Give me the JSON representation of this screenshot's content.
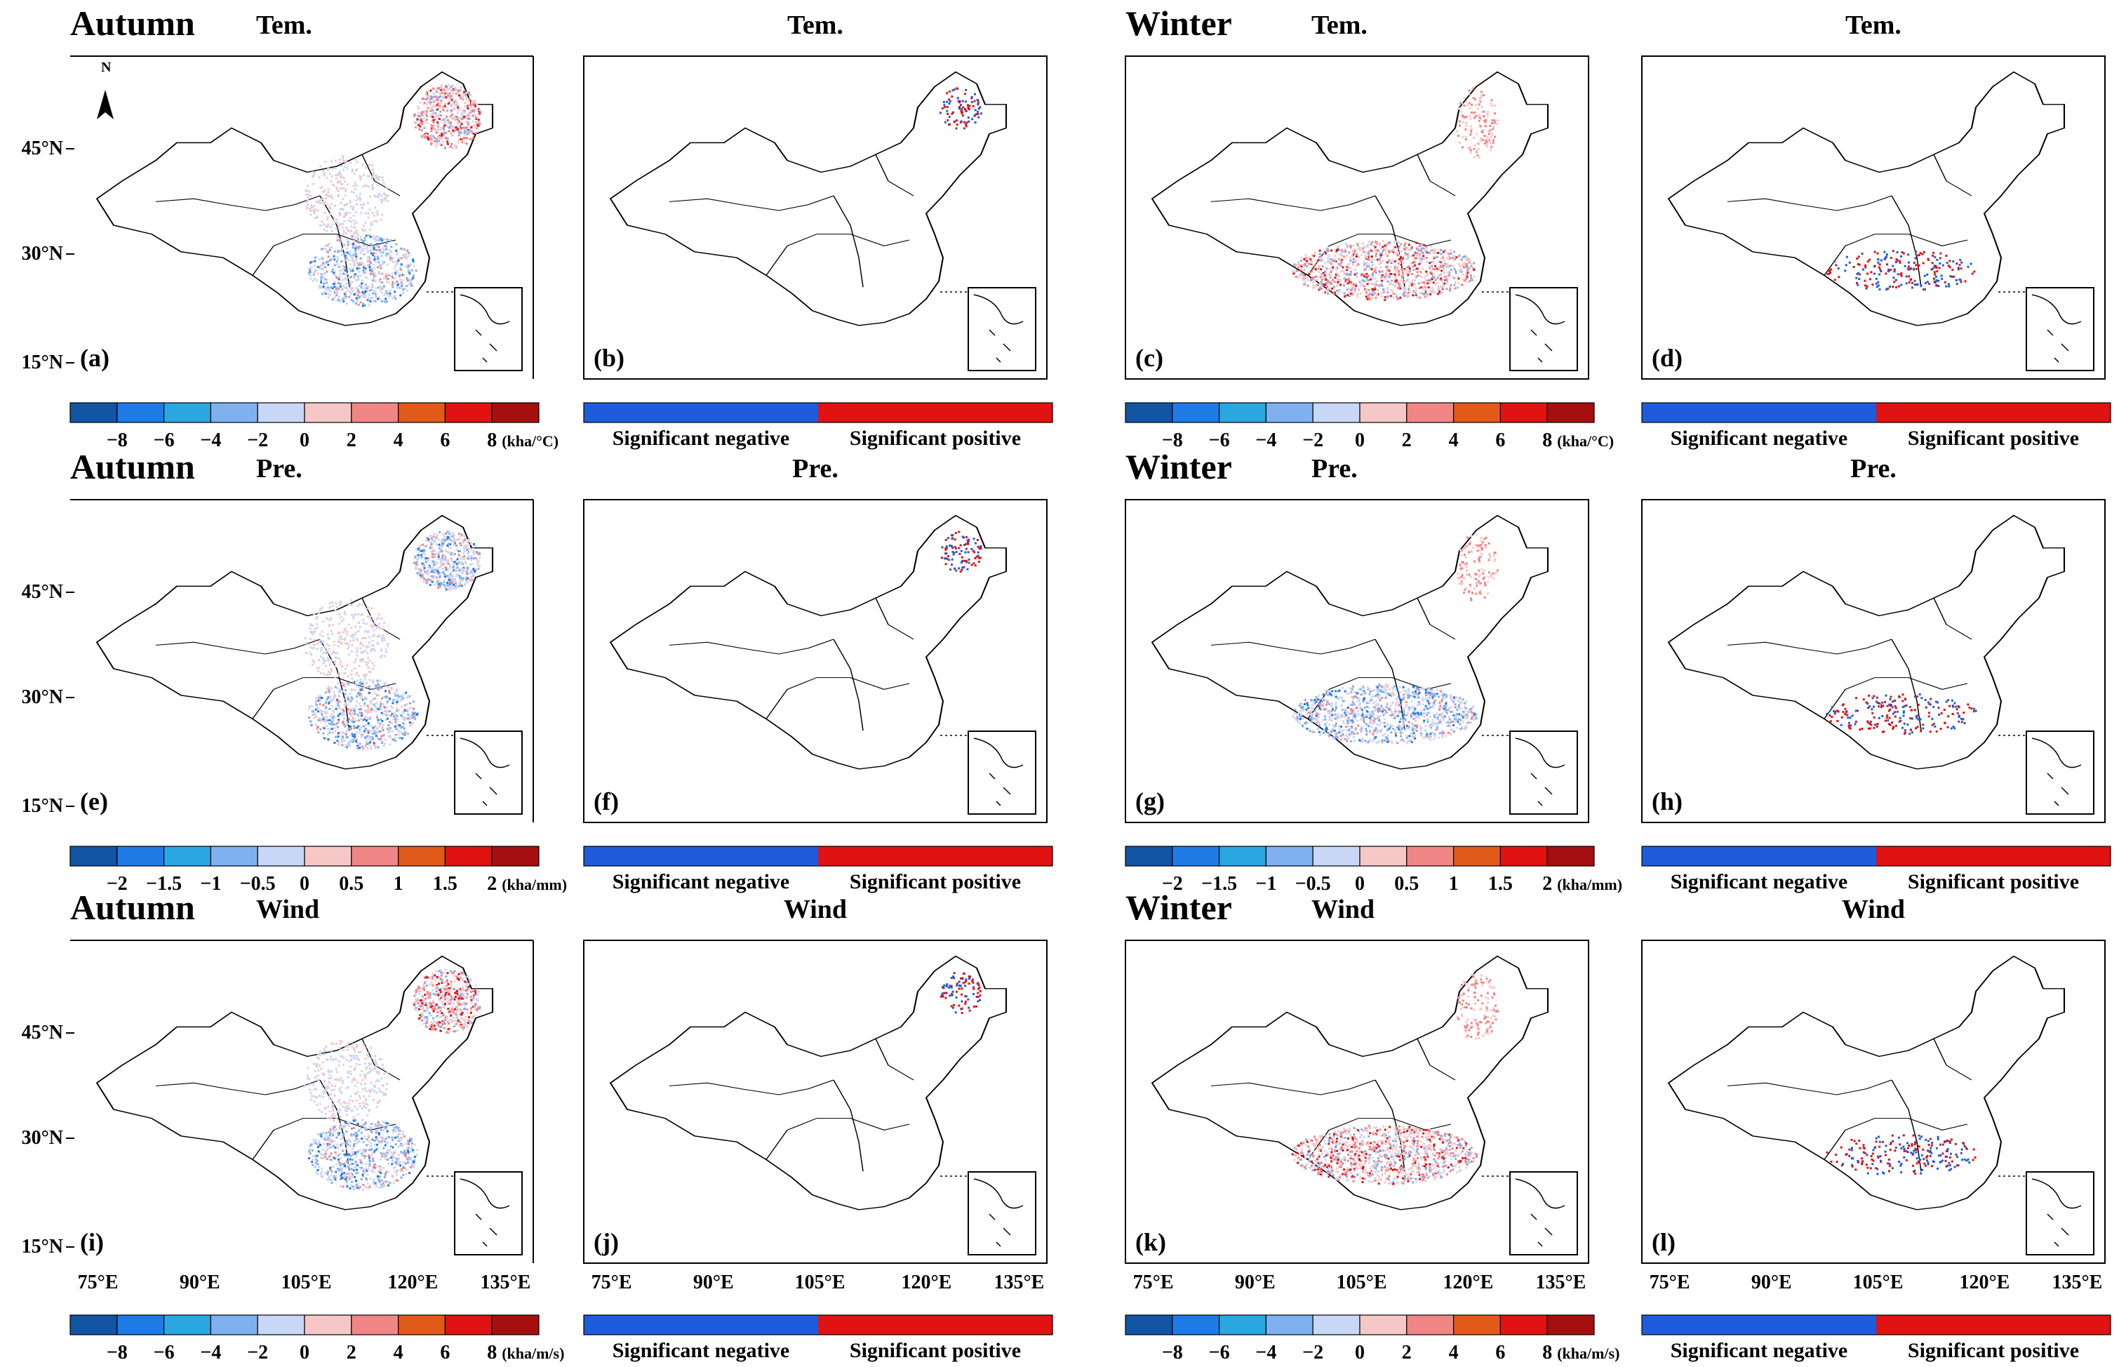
{
  "figure": {
    "seasons": [
      "Autumn",
      "Winter"
    ],
    "variables": [
      "Tem.",
      "Pre.",
      "Wind"
    ],
    "colors": {
      "scale": [
        "#1155a3",
        "#1e7be6",
        "#2aa6e0",
        "#7fb0ef",
        "#c9d7f6",
        "#f6c7c7",
        "#f08585",
        "#e05a1a",
        "#e01212",
        "#a50f0f"
      ],
      "sig_negative": "#1e5cdb",
      "sig_positive": "#e01212"
    },
    "panels": [
      {
        "id": "a",
        "label": "(a)",
        "season": "Autumn",
        "title": "Tem.",
        "kind": "coef",
        "hotspots": [
          "northeast",
          "central",
          "southeast"
        ]
      },
      {
        "id": "b",
        "label": "(b)",
        "season": "",
        "title": "Tem.",
        "kind": "sig",
        "hotspots": [
          "northeast-sig"
        ]
      },
      {
        "id": "c",
        "label": "(c)",
        "season": "Winter",
        "title": "Tem.",
        "kind": "coef",
        "hotspots": [
          "south",
          "northeast-light"
        ]
      },
      {
        "id": "d",
        "label": "(d)",
        "season": "",
        "title": "Tem.",
        "kind": "sig",
        "hotspots": [
          "south-sig"
        ]
      },
      {
        "id": "e",
        "label": "(e)",
        "season": "Autumn",
        "title": "Pre.",
        "kind": "coef",
        "hotspots": [
          "northeast-blue",
          "central",
          "southeast"
        ]
      },
      {
        "id": "f",
        "label": "(f)",
        "season": "",
        "title": "Pre.",
        "kind": "sig",
        "hotspots": [
          "northeast-sig"
        ]
      },
      {
        "id": "g",
        "label": "(g)",
        "season": "Winter",
        "title": "Pre.",
        "kind": "coef",
        "hotspots": [
          "south-blue",
          "northeast-light"
        ]
      },
      {
        "id": "h",
        "label": "(h)",
        "season": "",
        "title": "Pre.",
        "kind": "sig",
        "hotspots": [
          "south-sig"
        ]
      },
      {
        "id": "i",
        "label": "(i)",
        "season": "Autumn",
        "title": "Wind",
        "kind": "coef",
        "hotspots": [
          "northeast",
          "central",
          "southeast"
        ]
      },
      {
        "id": "j",
        "label": "(j)",
        "season": "",
        "title": "Wind",
        "kind": "sig",
        "hotspots": [
          "northeast-sig"
        ]
      },
      {
        "id": "k",
        "label": "(k)",
        "season": "Winter",
        "title": "Wind",
        "kind": "coef",
        "hotspots": [
          "south",
          "northeast-light"
        ]
      },
      {
        "id": "l",
        "label": "(l)",
        "season": "",
        "title": "Wind",
        "kind": "sig",
        "hotspots": [
          "south-sig"
        ]
      }
    ],
    "lat_labels": [
      "45°N",
      "30°N",
      "15°N"
    ],
    "lon_labels": [
      "75°E",
      "90°E",
      "105°E",
      "120°E",
      "135°E"
    ],
    "north_arrow": "N",
    "legends": {
      "row1_coef": {
        "ticks": [
          "−8",
          "−6",
          "−4",
          "−2",
          "0",
          "2",
          "4",
          "6",
          "8"
        ],
        "unit": "(kha/°C)"
      },
      "row2_coef": {
        "ticks": [
          "−2",
          "−1.5",
          "−1",
          "−0.5",
          "0",
          "0.5",
          "1",
          "1.5",
          "2"
        ],
        "unit": "(kha/mm)"
      },
      "row3_coef": {
        "ticks": [
          "−8",
          "−6",
          "−4",
          "−2",
          "0",
          "2",
          "4",
          "6",
          "8"
        ],
        "unit": "(kha/m/s)"
      },
      "sig": {
        "negative": "Significant negative",
        "positive": "Significant positive"
      }
    }
  }
}
